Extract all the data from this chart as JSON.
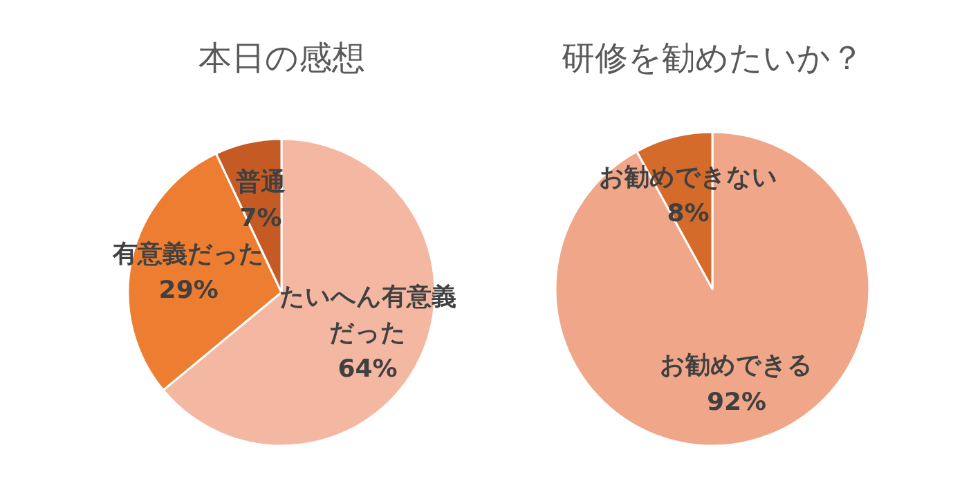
{
  "chart_data": [
    {
      "type": "pie",
      "title": "本日の感想",
      "categories": [
        "たいへん有意義だった",
        "有意義だった",
        "普通"
      ],
      "values": [
        64,
        29,
        7
      ],
      "colors": [
        "#f4b8a2",
        "#ed7d31",
        "#c55a24"
      ],
      "value_labels": [
        "64%",
        "29%",
        "7%"
      ]
    },
    {
      "type": "pie",
      "title": "研修を勧めたいか？",
      "categories": [
        "お勧めできる",
        "お勧めできない"
      ],
      "values": [
        92,
        8
      ],
      "colors": [
        "#f0a688",
        "#d46b2a"
      ],
      "value_labels": [
        "92%",
        "8%"
      ]
    }
  ]
}
